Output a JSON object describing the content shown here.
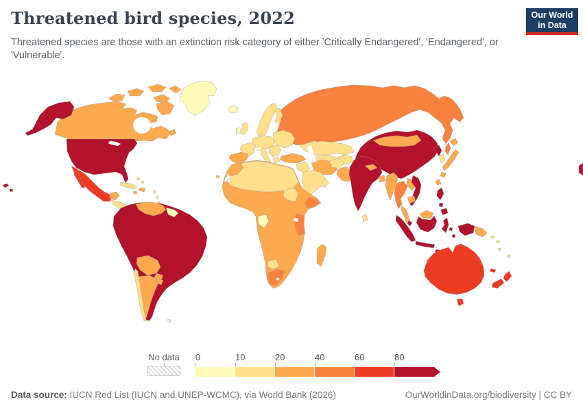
{
  "header": {
    "title": "Threatened bird species, 2022",
    "subtitle": "Threatened species are those with an extinction risk category of either 'Critically Endangered', 'Endangered', or 'Vulnerable'.",
    "logo": {
      "line1": "Our World",
      "line2": "in Data",
      "bg_color": "#1d3d63",
      "accent_color": "#d42b21"
    }
  },
  "legend": {
    "no_data_label": "No data",
    "ticks": [
      "0",
      "10",
      "20",
      "40",
      "60",
      "80"
    ],
    "bins": [
      {
        "range": "0-10",
        "color": "#FEFBB9"
      },
      {
        "range": "10-20",
        "color": "#FEDF8B"
      },
      {
        "range": "20-40",
        "color": "#FCA94F"
      },
      {
        "range": "40-60",
        "color": "#F9823F"
      },
      {
        "range": "60-80",
        "color": "#EE3B23"
      },
      {
        "range": "80+",
        "color": "#B2122B"
      }
    ]
  },
  "footer": {
    "source_label": "Data source:",
    "source_text": " IUCN Red List (IUCN and UNEP-WCMC), via World Bank (2026)",
    "attribution": "OurWorldinData.org/biodiversity | CC BY"
  },
  "chart_data": {
    "type": "choropleth",
    "title": "Threatened bird species, 2022",
    "year": 2022,
    "metric": "Number of threatened bird species",
    "legend_position": "bottom",
    "no_data_style": "hatched",
    "bin_colors": {
      "0-10": "#FEFBB9",
      "10-20": "#FEDF8B",
      "20-40": "#FCA94F",
      "40-60": "#F9823F",
      "60-80": "#EE3B23",
      "80+": "#B2122B"
    },
    "regions": {
      "greenland": "0-10",
      "iceland": "0-10",
      "ireland": "0-10",
      "guyana-suriname": "0-10",
      "alpine-states": "0-10",
      "gabon": "0-10",
      "canada": "20-40",
      "usa": "80+",
      "mexico": "60-80",
      "guatemala": "20-40",
      "central-america": "10-20",
      "panama": "20-40",
      "cuba": "10-20",
      "hispaniola": "20-40",
      "jamaica": "20-40",
      "bahamas": "10-20",
      "lesser-antilles": "10-20",
      "trinidad-and-tobago": "20-40",
      "colombia": "80+",
      "ecuador": "80+",
      "peru": "80+",
      "brazil": "80+",
      "venezuela": "20-40",
      "bolivia": "20-40",
      "paraguay": "20-40",
      "argentina": "20-40",
      "chile": "10-20",
      "uruguay": "20-40",
      "falkland-islands": "No data",
      "united-kingdom": "10-20",
      "france": "10-20",
      "spain": "20-40",
      "central-europe": "10-20",
      "scandinavia": "10-20",
      "finland": "10-20",
      "denmark": "10-20",
      "italy": "10-20",
      "balkans": "10-20",
      "greece": "10-20",
      "eastern-europe": "10-20",
      "russia": "40-60",
      "kazakhstan": "10-20",
      "central-asia": "10-20",
      "turkey": "20-40",
      "iraq-syria": "10-20",
      "iran": "20-40",
      "afghanistan": "10-20",
      "pakistan": "20-40",
      "saudi-arabia": "10-20",
      "oman": "10-20",
      "north-africa": "10-20",
      "morocco": "20-40",
      "western-sahara": "No data",
      "sudan": "10-20",
      "west-central-africa": "20-40",
      "somalia": "40-60",
      "kenya-tanzania": "40-60",
      "south-africa": "40-60",
      "lesotho": "10-20",
      "botswana": "10-20",
      "madagascar": "20-40",
      "india": "80+",
      "sri-lanka": "10-20",
      "nepal": "20-40",
      "bangladesh": "20-40",
      "china": "80+",
      "mongolia": "20-40",
      "north-korea": "80+",
      "south-korea": "10-20",
      "japan": "20-40",
      "taiwan": "20-40",
      "myanmar": "20-40",
      "thailand": "40-60",
      "laos": "20-40",
      "vietnam": "80+",
      "cambodia": "20-40",
      "malaysia": "20-40",
      "singapore": "80+",
      "indonesia": "80+",
      "philippines": "80+",
      "papua-new-guinea": "20-40",
      "solomon-islands": "10-20",
      "vanuatu": "10-20",
      "fiji": "10-20",
      "new-caledonia": "60-80",
      "australia": "60-80",
      "new-zealand": "60-80"
    }
  }
}
